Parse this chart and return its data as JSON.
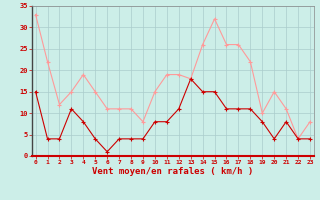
{
  "x": [
    0,
    1,
    2,
    3,
    4,
    5,
    6,
    7,
    8,
    9,
    10,
    11,
    12,
    13,
    14,
    15,
    16,
    17,
    18,
    19,
    20,
    21,
    22,
    23
  ],
  "vent_moyen": [
    15,
    4,
    4,
    11,
    8,
    4,
    1,
    4,
    4,
    4,
    8,
    8,
    11,
    18,
    15,
    15,
    11,
    11,
    11,
    8,
    4,
    8,
    4,
    4
  ],
  "rafales": [
    33,
    22,
    12,
    15,
    19,
    15,
    11,
    11,
    11,
    8,
    15,
    19,
    19,
    18,
    26,
    32,
    26,
    26,
    22,
    10,
    15,
    11,
    4,
    8
  ],
  "xlabel": "Vent moyen/en rafales ( km/h )",
  "ylim": [
    0,
    35
  ],
  "yticks": [
    0,
    5,
    10,
    15,
    20,
    25,
    30,
    35
  ],
  "xticks": [
    0,
    1,
    2,
    3,
    4,
    5,
    6,
    7,
    8,
    9,
    10,
    11,
    12,
    13,
    14,
    15,
    16,
    17,
    18,
    19,
    20,
    21,
    22,
    23
  ],
  "color_moyen": "#cc0000",
  "color_rafales": "#ff9999",
  "bg_color": "#cceee8",
  "grid_color": "#aacccc",
  "tick_color": "#cc0000",
  "label_color": "#cc0000",
  "spine_color": "#888888"
}
